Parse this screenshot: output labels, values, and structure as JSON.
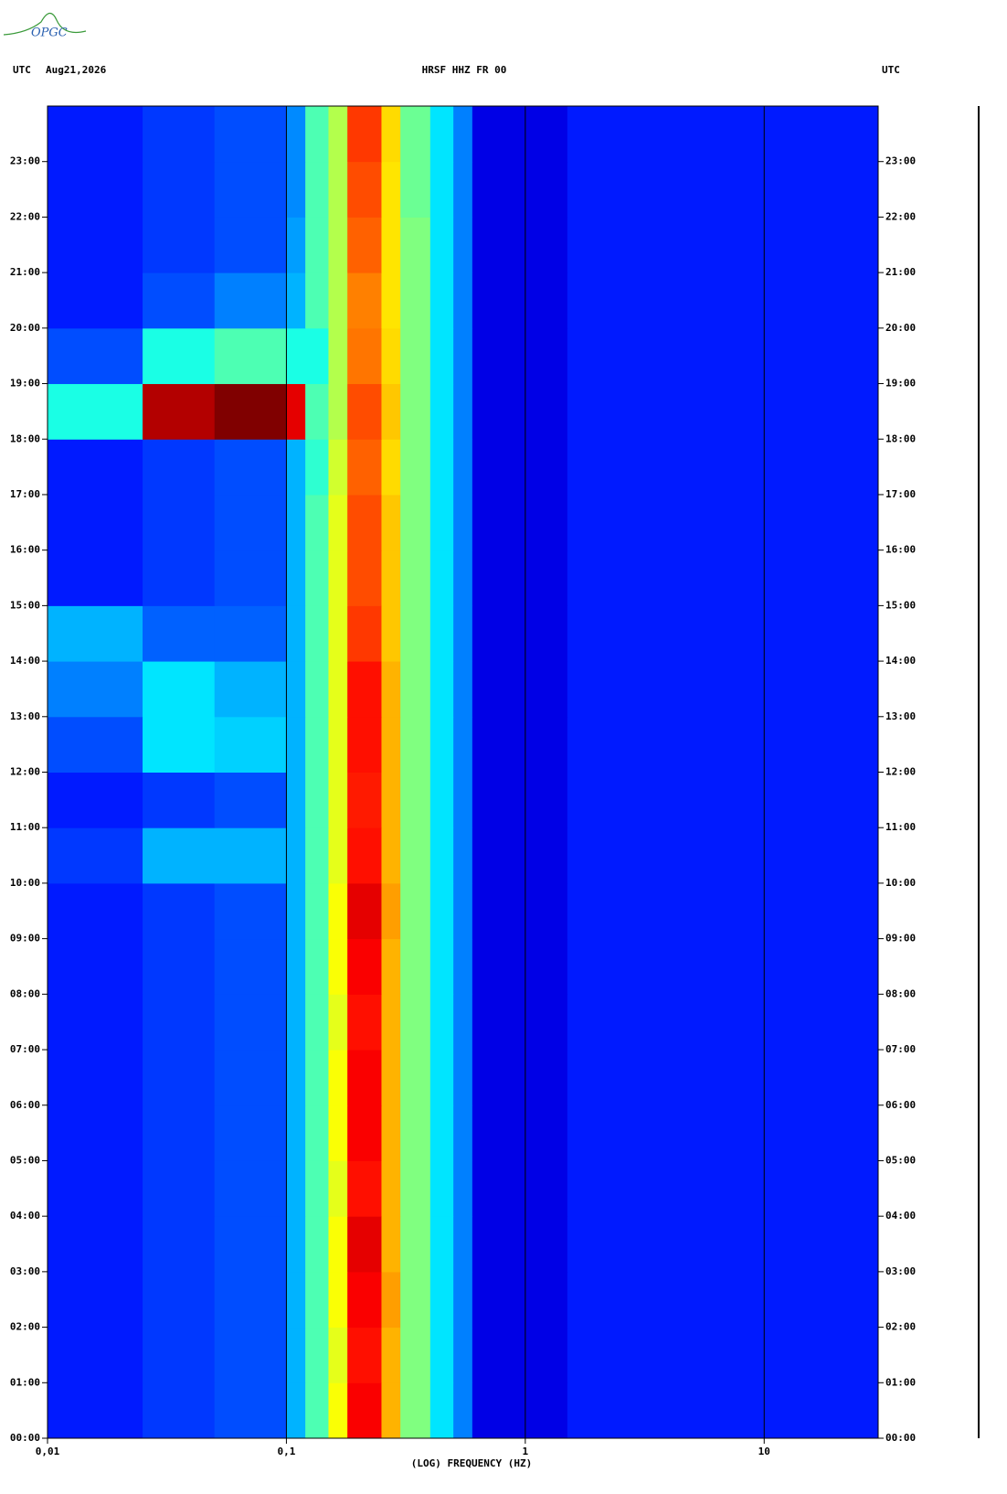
{
  "logo": "OPGC",
  "chart_data": {
    "type": "heatmap",
    "header_left": "UTC",
    "date": "Aug21,2026",
    "title": "HRSF HHZ FR 00",
    "header_right": "UTC",
    "xlabel": "(LOG) FREQUENCY (HZ)",
    "xscale": "log",
    "colormap": "jet",
    "xlim": [
      0.01,
      30
    ],
    "xticks": [
      {
        "value": 0.01,
        "label": "0,01"
      },
      {
        "value": 0.1,
        "label": "0,1"
      },
      {
        "value": 1,
        "label": "1"
      },
      {
        "value": 10,
        "label": "10"
      }
    ],
    "ylim": [
      0,
      24
    ],
    "yticks": [
      {
        "value": 0,
        "label": "00:00"
      },
      {
        "value": 1,
        "label": "01:00"
      },
      {
        "value": 2,
        "label": "02:00"
      },
      {
        "value": 3,
        "label": "03:00"
      },
      {
        "value": 4,
        "label": "04:00"
      },
      {
        "value": 5,
        "label": "05:00"
      },
      {
        "value": 6,
        "label": "06:00"
      },
      {
        "value": 7,
        "label": "07:00"
      },
      {
        "value": 8,
        "label": "08:00"
      },
      {
        "value": 9,
        "label": "09:00"
      },
      {
        "value": 10,
        "label": "10:00"
      },
      {
        "value": 11,
        "label": "11:00"
      },
      {
        "value": 12,
        "label": "12:00"
      },
      {
        "value": 13,
        "label": "13:00"
      },
      {
        "value": 14,
        "label": "14:00"
      },
      {
        "value": 15,
        "label": "15:00"
      },
      {
        "value": 16,
        "label": "16:00"
      },
      {
        "value": 17,
        "label": "17:00"
      },
      {
        "value": 18,
        "label": "18:00"
      },
      {
        "value": 19,
        "label": "19:00"
      },
      {
        "value": 20,
        "label": "20:00"
      },
      {
        "value": 21,
        "label": "21:00"
      },
      {
        "value": 22,
        "label": "22:00"
      },
      {
        "value": 23,
        "label": "23:00"
      }
    ],
    "x_edges": [
      0.01,
      0.025,
      0.05,
      0.1,
      0.12,
      0.15,
      0.18,
      0.25,
      0.3,
      0.4,
      0.5,
      0.6,
      1.5,
      30
    ],
    "y_edges": [
      0,
      1,
      2,
      3,
      4,
      5,
      6,
      7,
      8,
      9,
      10,
      11,
      12,
      13,
      14,
      15,
      16,
      17,
      18,
      19,
      20,
      21,
      22,
      23,
      24
    ],
    "z": [
      [
        0.15,
        0.18,
        0.2,
        0.3,
        0.45,
        0.62,
        0.88,
        0.7,
        0.5,
        0.35,
        0.25,
        0.1,
        0.15
      ],
      [
        0.15,
        0.18,
        0.2,
        0.3,
        0.45,
        0.6,
        0.86,
        0.7,
        0.5,
        0.35,
        0.25,
        0.1,
        0.15
      ],
      [
        0.15,
        0.18,
        0.2,
        0.3,
        0.45,
        0.62,
        0.88,
        0.72,
        0.5,
        0.35,
        0.25,
        0.1,
        0.15
      ],
      [
        0.15,
        0.18,
        0.2,
        0.3,
        0.45,
        0.62,
        0.9,
        0.7,
        0.5,
        0.35,
        0.25,
        0.1,
        0.15
      ],
      [
        0.15,
        0.18,
        0.2,
        0.3,
        0.45,
        0.6,
        0.86,
        0.7,
        0.5,
        0.35,
        0.25,
        0.1,
        0.15
      ],
      [
        0.15,
        0.18,
        0.2,
        0.3,
        0.45,
        0.62,
        0.88,
        0.7,
        0.5,
        0.35,
        0.25,
        0.1,
        0.15
      ],
      [
        0.15,
        0.18,
        0.2,
        0.3,
        0.45,
        0.62,
        0.88,
        0.7,
        0.5,
        0.35,
        0.25,
        0.1,
        0.15
      ],
      [
        0.15,
        0.18,
        0.2,
        0.3,
        0.45,
        0.6,
        0.86,
        0.7,
        0.5,
        0.35,
        0.25,
        0.1,
        0.15
      ],
      [
        0.15,
        0.18,
        0.2,
        0.3,
        0.45,
        0.62,
        0.88,
        0.7,
        0.5,
        0.35,
        0.25,
        0.1,
        0.15
      ],
      [
        0.15,
        0.18,
        0.2,
        0.3,
        0.45,
        0.62,
        0.9,
        0.72,
        0.5,
        0.35,
        0.25,
        0.1,
        0.15
      ],
      [
        0.18,
        0.3,
        0.3,
        0.3,
        0.45,
        0.6,
        0.86,
        0.7,
        0.5,
        0.35,
        0.25,
        0.1,
        0.15
      ],
      [
        0.15,
        0.18,
        0.2,
        0.3,
        0.45,
        0.6,
        0.85,
        0.7,
        0.5,
        0.35,
        0.25,
        0.1,
        0.15
      ],
      [
        0.2,
        0.35,
        0.33,
        0.3,
        0.45,
        0.6,
        0.86,
        0.7,
        0.5,
        0.35,
        0.25,
        0.1,
        0.15
      ],
      [
        0.25,
        0.35,
        0.3,
        0.3,
        0.45,
        0.6,
        0.86,
        0.7,
        0.5,
        0.35,
        0.25,
        0.1,
        0.15
      ],
      [
        0.3,
        0.22,
        0.22,
        0.3,
        0.45,
        0.6,
        0.82,
        0.68,
        0.5,
        0.35,
        0.25,
        0.1,
        0.15
      ],
      [
        0.15,
        0.18,
        0.2,
        0.3,
        0.45,
        0.6,
        0.8,
        0.68,
        0.5,
        0.35,
        0.25,
        0.1,
        0.15
      ],
      [
        0.15,
        0.18,
        0.2,
        0.3,
        0.45,
        0.6,
        0.8,
        0.68,
        0.5,
        0.35,
        0.25,
        0.1,
        0.15
      ],
      [
        0.15,
        0.18,
        0.2,
        0.3,
        0.42,
        0.58,
        0.78,
        0.66,
        0.5,
        0.35,
        0.25,
        0.1,
        0.15
      ],
      [
        0.4,
        0.95,
        1.0,
        0.9,
        0.45,
        0.55,
        0.8,
        0.68,
        0.5,
        0.35,
        0.25,
        0.1,
        0.15
      ],
      [
        0.2,
        0.4,
        0.45,
        0.4,
        0.4,
        0.55,
        0.76,
        0.66,
        0.5,
        0.35,
        0.25,
        0.1,
        0.15
      ],
      [
        0.15,
        0.2,
        0.25,
        0.3,
        0.45,
        0.55,
        0.75,
        0.65,
        0.5,
        0.35,
        0.25,
        0.1,
        0.15
      ],
      [
        0.15,
        0.18,
        0.2,
        0.28,
        0.45,
        0.55,
        0.78,
        0.65,
        0.5,
        0.35,
        0.25,
        0.1,
        0.15
      ],
      [
        0.15,
        0.18,
        0.2,
        0.26,
        0.45,
        0.55,
        0.8,
        0.65,
        0.48,
        0.35,
        0.25,
        0.1,
        0.15
      ],
      [
        0.15,
        0.18,
        0.2,
        0.26,
        0.45,
        0.55,
        0.82,
        0.66,
        0.48,
        0.35,
        0.25,
        0.1,
        0.15
      ]
    ]
  }
}
